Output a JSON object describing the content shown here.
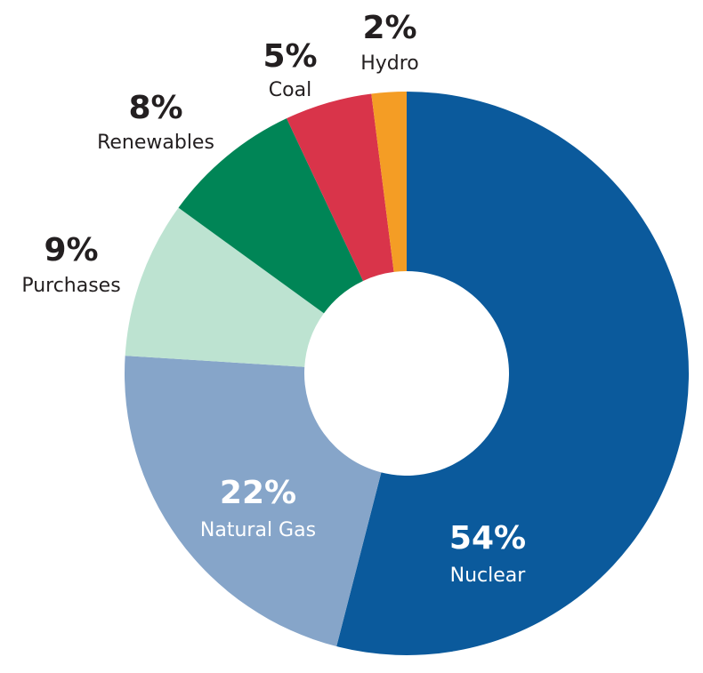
{
  "chart_data": {
    "type": "donut",
    "categories": [
      "Nuclear",
      "Natural Gas",
      "Purchases",
      "Renewables",
      "Coal",
      "Hydro"
    ],
    "values": [
      54,
      22,
      9,
      8,
      5,
      2
    ],
    "value_labels": [
      "54%",
      "22%",
      "9%",
      "8%",
      "5%",
      "2%"
    ],
    "colors": [
      "#0b5a9c",
      "#86a5c9",
      "#bde3d1",
      "#008556",
      "#d9344a",
      "#f49d25"
    ]
  }
}
